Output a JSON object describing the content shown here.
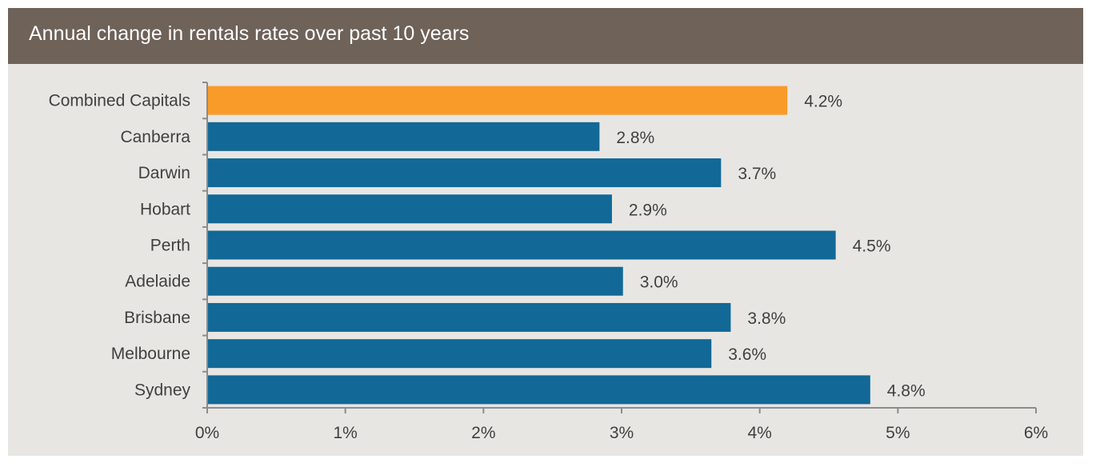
{
  "header": {
    "title": "Annual change in rentals rates over past 10 years"
  },
  "colors": {
    "header_bg": "#6e6259",
    "panel_bg": "#e8e6e3",
    "highlight_bar": "#f99b29",
    "bar": "#126896",
    "axis": "#8c8c8c"
  },
  "chart_data": {
    "type": "bar",
    "orientation": "horizontal",
    "title": "Annual change in rentals rates over past 10 years",
    "categories": [
      "Combined Capitals",
      "Canberra",
      "Darwin",
      "Hobart",
      "Perth",
      "Adelaide",
      "Brisbane",
      "Melbourne",
      "Sydney"
    ],
    "values": [
      4.2,
      2.84,
      3.72,
      2.93,
      4.55,
      3.01,
      3.79,
      3.65,
      4.8
    ],
    "value_labels": [
      "4.2%",
      "2.8%",
      "3.7%",
      "2.9%",
      "4.5%",
      "3.0%",
      "3.8%",
      "3.6%",
      "4.8%"
    ],
    "highlight_category": "Combined Capitals",
    "xlim": [
      0,
      6
    ],
    "x_ticks": [
      0,
      1,
      2,
      3,
      4,
      5,
      6
    ],
    "x_tick_labels": [
      "0%",
      "1%",
      "2%",
      "3%",
      "4%",
      "5%",
      "6%"
    ],
    "xlabel": "",
    "ylabel": "",
    "grid": false,
    "legend": "none"
  }
}
